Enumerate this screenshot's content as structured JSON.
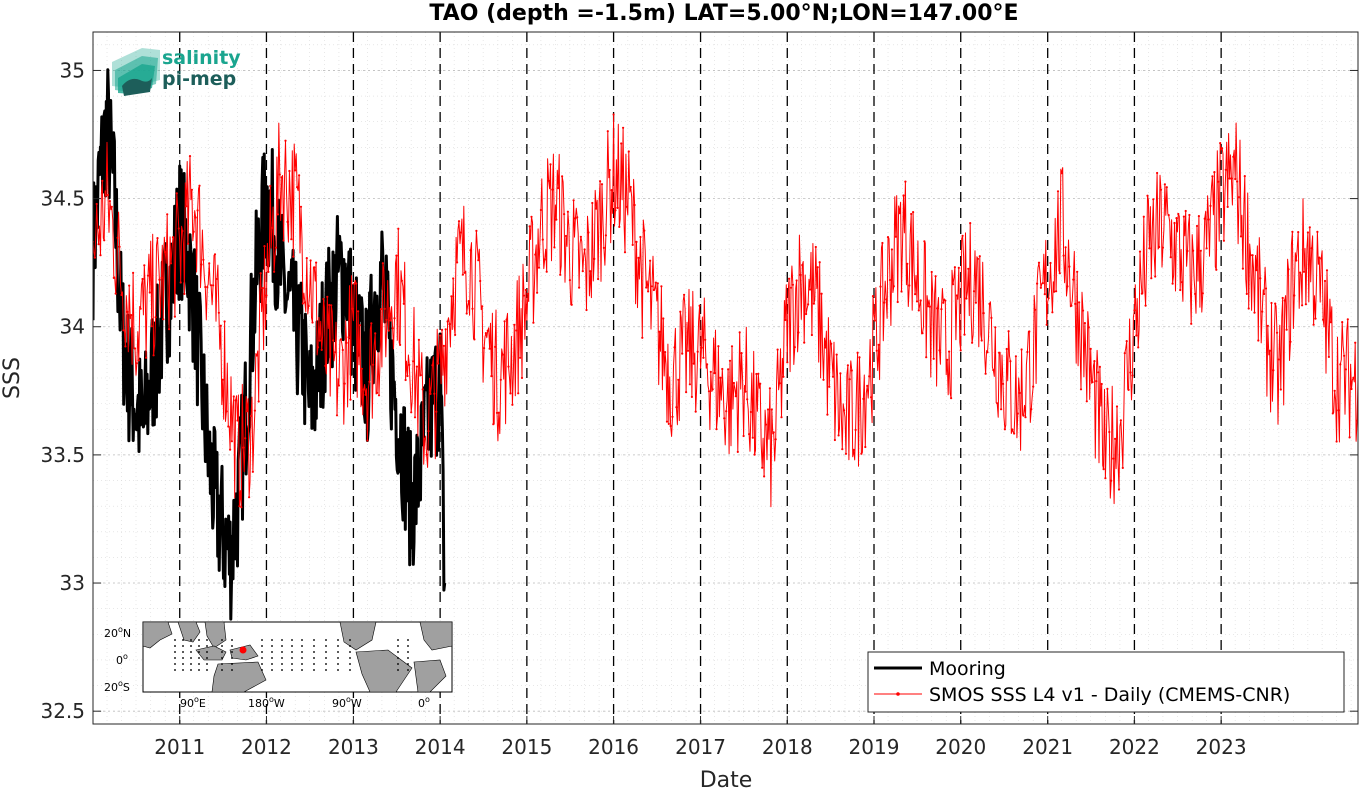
{
  "colors": {
    "mooring": "#000000",
    "smos": "#ff0000",
    "logo_teal": "#1aa58f",
    "logo_dark": "#1d5e5a",
    "land": "#a0a0a0",
    "station_dot": "#000000",
    "location_marker": "#ff0000"
  },
  "logo": {
    "line1": "salinity",
    "line2": "pi-mep",
    "icon": "salinity-waves-icon"
  },
  "inset_map": {
    "lat_labels": [
      {
        "value": "20",
        "sup": "o",
        "suffix": "N"
      },
      {
        "value": "0",
        "sup": "o",
        "suffix": ""
      },
      {
        "value": "20",
        "sup": "o",
        "suffix": "S"
      }
    ],
    "lon_labels": [
      {
        "value": "90",
        "sup": "o",
        "suffix": "E"
      },
      {
        "value": "180",
        "sup": "o",
        "suffix": "W"
      },
      {
        "value": "90",
        "sup": "o",
        "suffix": "W"
      },
      {
        "value": "0",
        "sup": "o",
        "suffix": ""
      }
    ]
  },
  "chart_data": {
    "type": "line",
    "title": "TAO (depth =-1.5m) LAT=5.00°N;LON=147.00°E",
    "xlabel": "Date",
    "ylabel": "SSS",
    "xlim": [
      "2010-01-01",
      "2024-07-30"
    ],
    "ylim": [
      32.45,
      35.15
    ],
    "yticks": [
      32.5,
      33,
      33.5,
      34,
      34.5,
      35
    ],
    "ytick_labels": [
      "32.5",
      "33",
      "33.5",
      "34",
      "34.5",
      "35"
    ],
    "xticks": [
      "2011-01-01",
      "2012-01-01",
      "2013-01-01",
      "2014-01-01",
      "2015-01-01",
      "2016-01-01",
      "2017-01-01",
      "2018-01-01",
      "2019-01-01",
      "2020-01-01",
      "2021-01-01",
      "2022-01-01",
      "2023-01-01"
    ],
    "xtick_labels": [
      "2011",
      "2012",
      "2013",
      "2014",
      "2015",
      "2016",
      "2017",
      "2018",
      "2019",
      "2020",
      "2021",
      "2022",
      "2023"
    ],
    "grid": true,
    "year_markers": "dashed vertical lines at each January 1",
    "legend_position": "bottom-right",
    "series": [
      {
        "name": "Mooring",
        "style": "thick black line",
        "x": [
          "2010-01-01",
          "2010-02-01",
          "2010-03-01",
          "2010-04-01",
          "2010-05-01",
          "2010-06-01",
          "2010-07-01",
          "2010-08-01",
          "2010-09-01",
          "2010-10-01",
          "2010-11-01",
          "2010-12-01",
          "2011-01-01",
          "2011-02-01",
          "2011-03-01",
          "2011-04-01",
          "2011-05-01",
          "2011-06-01",
          "2011-07-01",
          "2011-08-01",
          "2011-09-01",
          "2011-10-01",
          "2011-11-01",
          "2011-12-01",
          "2012-01-01",
          "2012-02-01",
          "2012-03-01",
          "2012-04-01",
          "2012-05-01",
          "2012-06-01",
          "2012-07-01",
          "2012-08-01",
          "2012-09-01",
          "2012-10-01",
          "2012-11-01",
          "2012-12-01",
          "2013-01-01",
          "2013-02-01",
          "2013-03-01",
          "2013-04-01",
          "2013-05-01",
          "2013-06-01",
          "2013-07-01",
          "2013-08-01",
          "2013-09-01",
          "2013-10-01",
          "2013-11-01",
          "2013-12-01",
          "2014-01-01",
          "2014-01-20"
        ],
        "y": [
          34.3,
          34.6,
          34.8,
          34.5,
          34.0,
          33.8,
          33.7,
          33.6,
          33.8,
          33.9,
          34.1,
          34.2,
          34.4,
          34.3,
          34.1,
          33.8,
          33.5,
          33.3,
          33.2,
          33.1,
          33.3,
          33.6,
          34.0,
          34.3,
          34.5,
          34.4,
          34.2,
          34.1,
          34.0,
          33.9,
          33.7,
          33.8,
          34.0,
          34.1,
          34.2,
          34.2,
          34.0,
          33.9,
          33.8,
          34.1,
          34.2,
          33.9,
          33.7,
          33.5,
          33.3,
          33.4,
          33.6,
          33.7,
          33.8,
          33.0
        ]
      },
      {
        "name": "SMOS SSS L4 v1 - Daily (CMEMS-CNR)",
        "style": "thin red line with dot markers",
        "x": [
          "2010-01-01",
          "2010-03-01",
          "2010-05-01",
          "2010-07-01",
          "2010-09-01",
          "2010-11-01",
          "2011-01-01",
          "2011-03-01",
          "2011-05-01",
          "2011-07-01",
          "2011-09-01",
          "2011-11-01",
          "2012-01-01",
          "2012-03-01",
          "2012-05-01",
          "2012-07-01",
          "2012-09-01",
          "2012-11-01",
          "2013-01-01",
          "2013-03-01",
          "2013-05-01",
          "2013-07-01",
          "2013-09-01",
          "2013-11-01",
          "2014-01-01",
          "2014-03-01",
          "2014-05-01",
          "2014-07-01",
          "2014-09-01",
          "2014-11-01",
          "2015-01-01",
          "2015-03-01",
          "2015-05-01",
          "2015-07-01",
          "2015-09-01",
          "2015-11-01",
          "2016-01-01",
          "2016-03-01",
          "2016-05-01",
          "2016-07-01",
          "2016-09-01",
          "2016-11-01",
          "2017-01-01",
          "2017-03-01",
          "2017-05-01",
          "2017-07-01",
          "2017-09-01",
          "2017-11-01",
          "2018-01-01",
          "2018-03-01",
          "2018-05-01",
          "2018-07-01",
          "2018-09-01",
          "2018-11-01",
          "2019-01-01",
          "2019-03-01",
          "2019-05-01",
          "2019-07-01",
          "2019-09-01",
          "2019-11-01",
          "2020-01-01",
          "2020-03-01",
          "2020-05-01",
          "2020-07-01",
          "2020-09-01",
          "2020-11-01",
          "2021-01-01",
          "2021-03-01",
          "2021-05-01",
          "2021-07-01",
          "2021-09-01",
          "2021-11-01",
          "2022-01-01",
          "2022-03-01",
          "2022-05-01",
          "2022-07-01",
          "2022-09-01",
          "2022-11-01",
          "2023-01-01",
          "2023-03-01",
          "2023-05-01",
          "2023-07-01",
          "2023-09-01",
          "2023-11-01",
          "2024-01-01",
          "2024-03-01",
          "2024-05-01",
          "2024-07-30"
        ],
        "y": [
          34.3,
          34.5,
          34.2,
          34.0,
          34.1,
          34.2,
          34.3,
          34.5,
          34.2,
          33.9,
          33.5,
          33.6,
          34.2,
          34.6,
          34.5,
          34.2,
          33.9,
          33.8,
          34.0,
          33.8,
          34.0,
          34.2,
          33.9,
          33.6,
          33.8,
          34.2,
          34.3,
          34.0,
          33.8,
          33.9,
          34.1,
          34.4,
          34.5,
          34.3,
          34.2,
          34.4,
          34.6,
          34.5,
          34.2,
          34.0,
          33.8,
          33.9,
          33.9,
          33.8,
          33.7,
          33.8,
          33.6,
          33.5,
          34.0,
          34.2,
          34.1,
          33.8,
          33.6,
          33.7,
          33.9,
          34.2,
          34.4,
          34.2,
          34.0,
          33.9,
          34.1,
          34.2,
          34.0,
          33.8,
          33.7,
          33.9,
          34.2,
          34.4,
          34.1,
          33.8,
          33.5,
          33.6,
          34.0,
          34.3,
          34.4,
          34.3,
          34.2,
          34.3,
          34.5,
          34.6,
          34.3,
          34.0,
          33.8,
          34.2,
          34.3,
          34.1,
          33.8,
          33.8
        ]
      }
    ]
  }
}
